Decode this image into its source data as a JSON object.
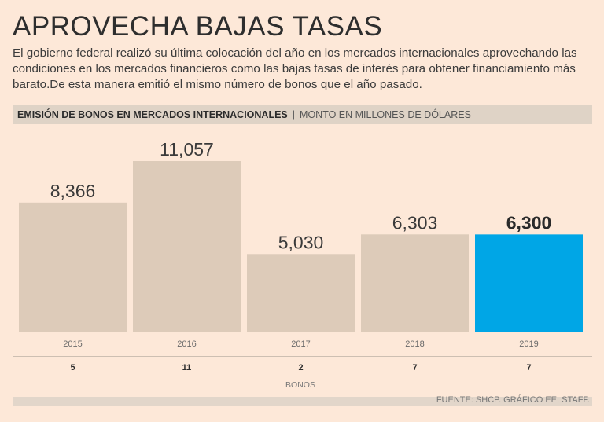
{
  "title": "APROVECHA BAJAS TASAS",
  "subtitle": "El gobierno federal realizó su última colocación del año en los mercados internacionales aprovechando las condiciones en los mercados financieros como las bajas tasas de interés para obtener financiamiento más barato.De esta manera emitió el mismo número de bonos que el año pasado.",
  "header": {
    "bold": "EMISIÓN DE BONOS EN MERCADOS INTERNACIONALES",
    "separator": "|",
    "light": "MONTO EN MILLONES DE DÓLARES"
  },
  "chart_data": {
    "type": "bar",
    "title": "EMISIÓN DE BONOS EN MERCADOS INTERNACIONALES",
    "ylabel": "MONTO EN MILLONES DE DÓLARES",
    "categories": [
      "2015",
      "2016",
      "2017",
      "2018",
      "2019"
    ],
    "values": [
      8366,
      11057,
      5030,
      6303,
      6300
    ],
    "value_labels": [
      "8,366",
      "11,057",
      "5,030",
      "6,303",
      "6,300"
    ],
    "highlight_index": 4,
    "bonds": {
      "label": "BONOS",
      "values": [
        5,
        11,
        2,
        7,
        7
      ]
    },
    "ylim": [
      0,
      11057
    ],
    "colors": {
      "bar": "#ddcbb9",
      "highlight": "#00a6e6"
    }
  },
  "source": "FUENTE: SHCP. GRÁFICO EE: STAFF."
}
